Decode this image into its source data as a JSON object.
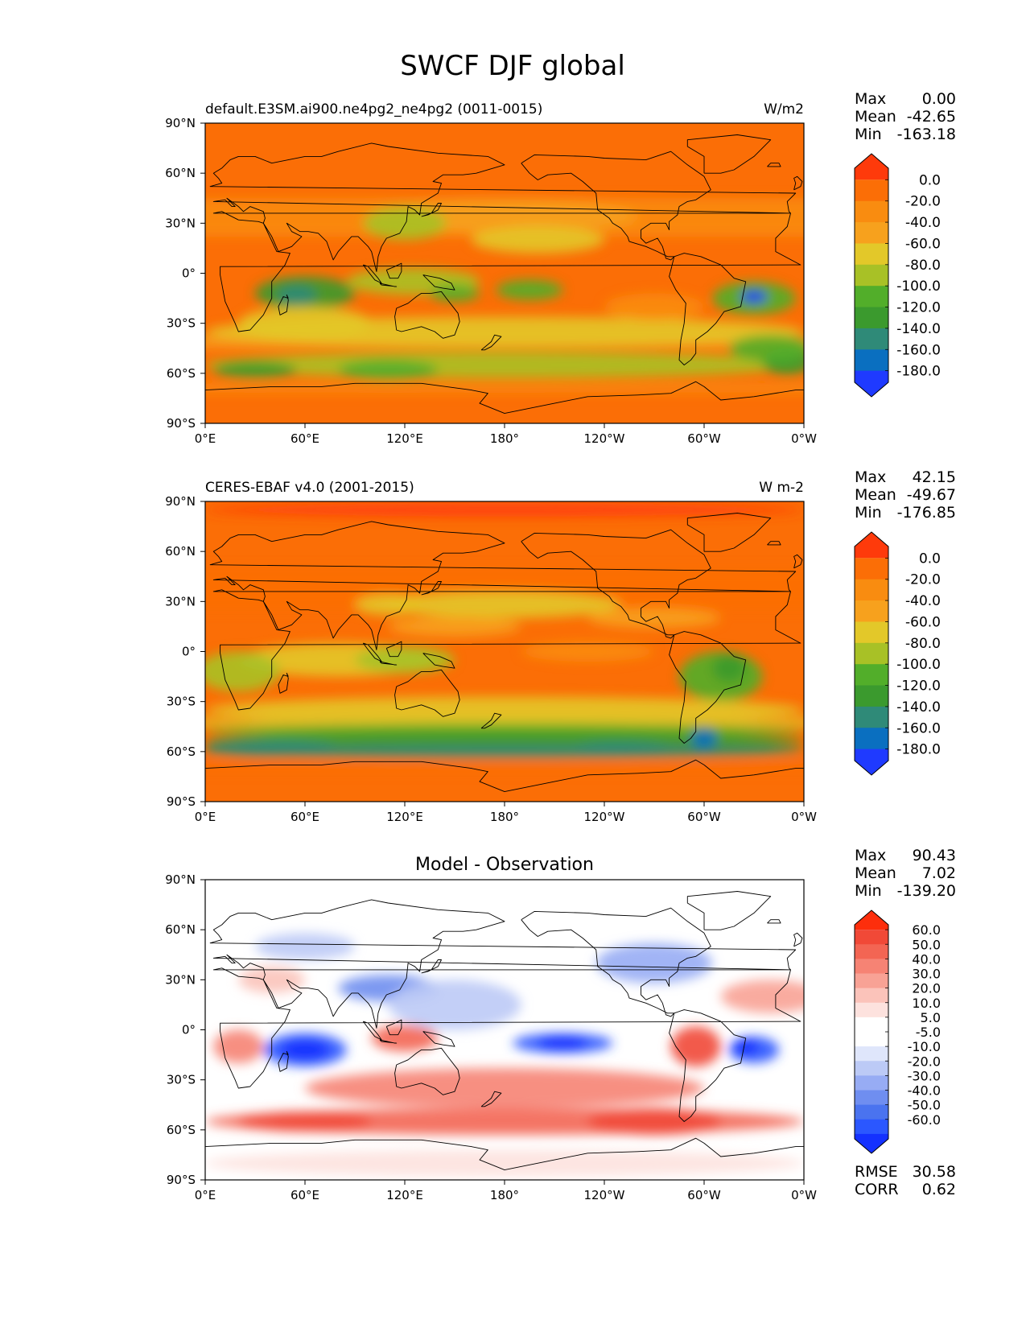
{
  "figure": {
    "title": "SWCF DJF global"
  },
  "axes": {
    "lat_ticks": [
      "90°N",
      "60°N",
      "30°N",
      "0°",
      "30°S",
      "60°S",
      "90°S"
    ],
    "lon_ticks": [
      "0°E",
      "60°E",
      "120°E",
      "180°",
      "120°W",
      "60°W",
      "0°W"
    ]
  },
  "stats_labels": {
    "max": "Max",
    "mean": "Mean",
    "min": "Min",
    "rmse": "RMSE",
    "corr": "CORR"
  },
  "colors": {
    "field": [
      "#1f3aff",
      "#0a6fc0",
      "#2f8a78",
      "#3b9a2e",
      "#52ae2a",
      "#a8c126",
      "#e3c829",
      "#f7a11d",
      "#f98c10",
      "#fb6e06",
      "#fe3a0b"
    ],
    "diff": [
      "#1431ff",
      "#2b57ff",
      "#4a73ef",
      "#6f8ef0",
      "#97acf4",
      "#bccaf6",
      "#dfe6fb",
      "#ffffff",
      "#ffffff",
      "#fde2de",
      "#fbc3ba",
      "#f8a295",
      "#f68374",
      "#f36553",
      "#f14937",
      "#fd2e0c"
    ]
  },
  "chart_data": [
    {
      "type": "heatmap",
      "title": "default.E3SM.ai900.ne4pg2_ne4pg2 (0011-0015)",
      "units": "W/m2",
      "xlabel": "",
      "ylabel": "",
      "xlim": [
        0,
        360
      ],
      "ylim": [
        -90,
        90
      ],
      "max": "0.00",
      "mean": "-42.65",
      "min": "-163.18",
      "colorbar_ticks": [
        "0.0",
        "-20.0",
        "-40.0",
        "-60.0",
        "-80.0",
        "-100.0",
        "-120.0",
        "-140.0",
        "-160.0",
        "-180.0"
      ]
    },
    {
      "type": "heatmap",
      "title": "CERES-EBAF v4.0 (2001-2015)",
      "units": "W m-2",
      "xlabel": "",
      "ylabel": "",
      "xlim": [
        0,
        360
      ],
      "ylim": [
        -90,
        90
      ],
      "max": "42.15",
      "mean": "-49.67",
      "min": "-176.85",
      "colorbar_ticks": [
        "0.0",
        "-20.0",
        "-40.0",
        "-60.0",
        "-80.0",
        "-100.0",
        "-120.0",
        "-140.0",
        "-160.0",
        "-180.0"
      ]
    },
    {
      "type": "heatmap",
      "title": "Model - Observation",
      "units": "",
      "xlabel": "",
      "ylabel": "",
      "xlim": [
        0,
        360
      ],
      "ylim": [
        -90,
        90
      ],
      "max": "90.43",
      "mean": "7.02",
      "min": "-139.20",
      "rmse": "30.58",
      "corr": "0.62",
      "colorbar_ticks": [
        "60.0",
        "50.0",
        "40.0",
        "30.0",
        "20.0",
        "10.0",
        "5.0",
        "-5.0",
        "-10.0",
        "-20.0",
        "-30.0",
        "-40.0",
        "-50.0",
        "-60.0"
      ]
    }
  ]
}
